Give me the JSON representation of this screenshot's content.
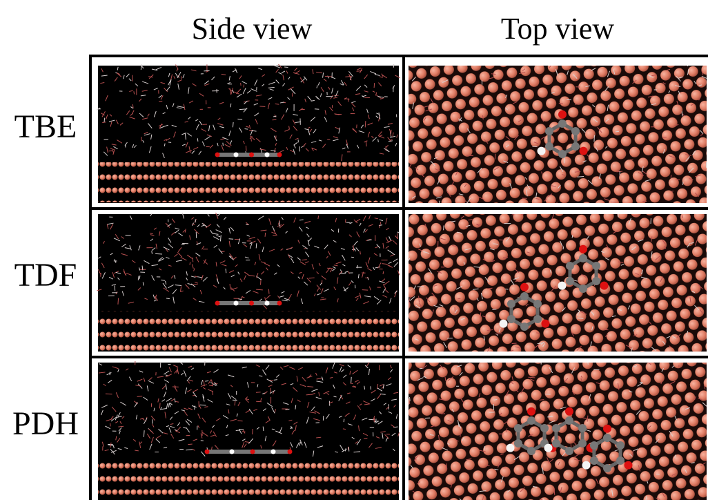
{
  "columns": [
    "Side view",
    "Top view"
  ],
  "rows": [
    "TBE",
    "TDF",
    "PDH"
  ]
}
